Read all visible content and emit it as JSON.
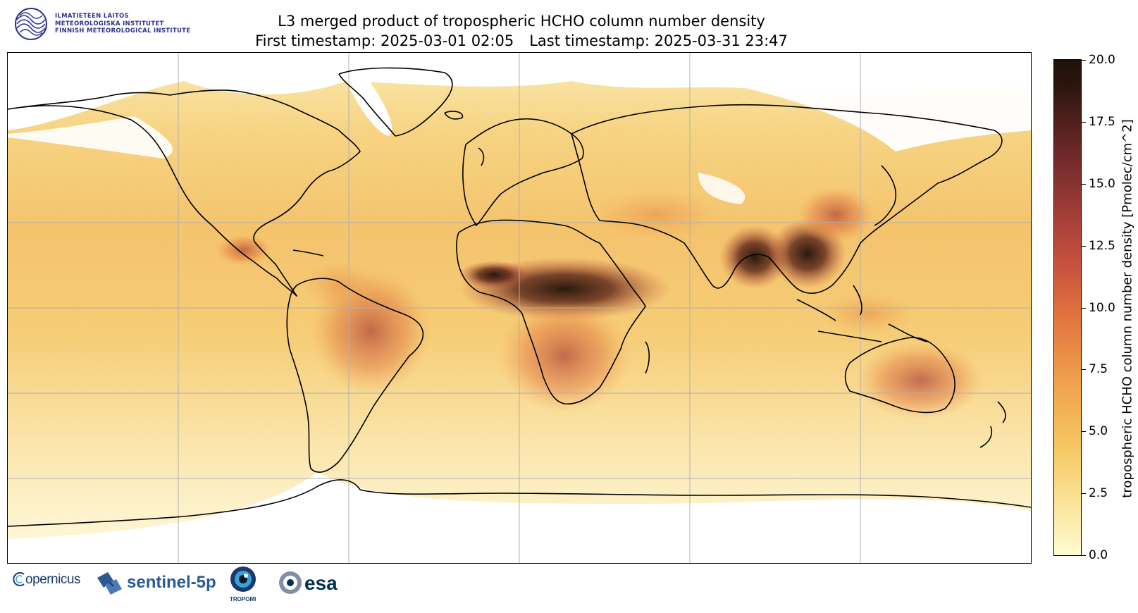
{
  "header": {
    "institute_lines": [
      "ILMATIETEEN LAITOS",
      "METEOROLOGISKA INSTITUTET",
      "FINNISH METEOROLOGICAL INSTITUTE"
    ],
    "title_line1": "L3 merged product of tropospheric HCHO column number density",
    "first_timestamp_label": "First timestamp: 2025-03-01 02:05",
    "last_timestamp_label": "Last timestamp: 2025-03-31 23:47"
  },
  "map": {
    "projection": "equirectangular",
    "gridlines": true,
    "colormap_low": "#fffbd0",
    "colormap_high": "#1e1208",
    "no_data_color": "#ffffff"
  },
  "colorbar": {
    "label": "tropospheric HCHO column number density [Pmolec/cm^2]",
    "ticks": [
      "0.0",
      "2.5",
      "5.0",
      "7.5",
      "10.0",
      "12.5",
      "15.0",
      "17.5",
      "20.0"
    ],
    "vmin": 0.0,
    "vmax": 20.0
  },
  "logos": {
    "copernicus": "opernicus",
    "sentinel": "sentinel-5p",
    "tropomi": "TROPOMI",
    "esa": "esa"
  }
}
